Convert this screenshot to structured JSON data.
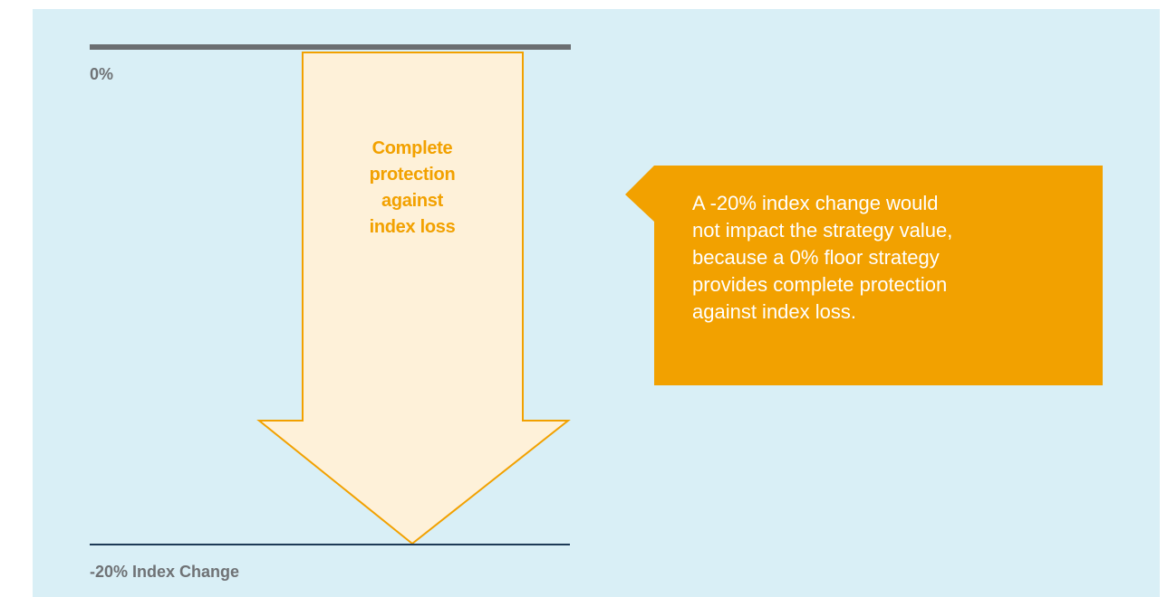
{
  "labels": {
    "top": "0%",
    "bottom": "-20% Index Change"
  },
  "arrow": {
    "text": "Complete\nprotection\nagainst\nindex loss",
    "fill_color": "#fef1d9",
    "stroke_color": "#f2a100"
  },
  "callout": {
    "text": "A -20% index change would\nnot impact the strategy value,\nbecause a 0% floor strategy\nprovides complete protection\nagainst index loss.",
    "color": "#f2a100"
  },
  "colors": {
    "background": "#d9eff6",
    "top_line": "#6b6e71",
    "bottom_line": "#1d3a56"
  }
}
